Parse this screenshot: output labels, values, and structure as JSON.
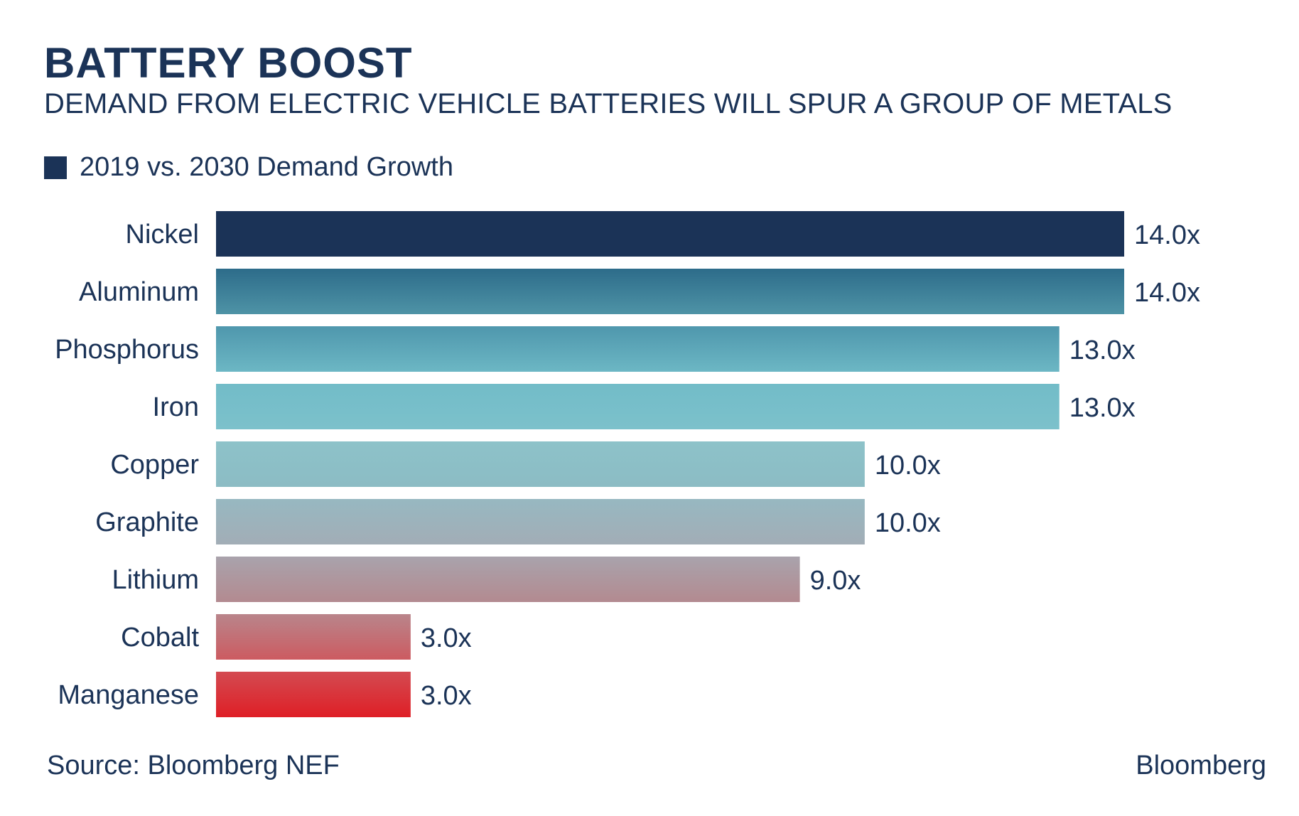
{
  "header": {
    "title": "BATTERY BOOST",
    "subtitle": "DEMAND FROM ELECTRIC VEHICLE BATTERIES WILL SPUR A GROUP OF METALS"
  },
  "legend": {
    "label": "2019 vs. 2030 Demand Growth",
    "color": "#1b3357"
  },
  "footer": {
    "source": "Source: Bloomberg NEF",
    "brand": "Bloomberg"
  },
  "chart_data": {
    "type": "bar",
    "orientation": "horizontal",
    "categories": [
      "Nickel",
      "Aluminum",
      "Phosphorus",
      "Iron",
      "Copper",
      "Graphite",
      "Lithium",
      "Cobalt",
      "Manganese"
    ],
    "series": [
      {
        "name": "2019 vs. 2030 Demand Growth",
        "values": [
          14.0,
          14.0,
          13.0,
          13.0,
          10.0,
          10.0,
          9.0,
          3.0,
          3.0
        ]
      }
    ],
    "data_labels": [
      "14.0x",
      "14.0x",
      "13.0x",
      "13.0x",
      "10.0x",
      "10.0x",
      "9.0x",
      "3.0x",
      "3.0x"
    ],
    "bar_colors": [
      [
        "#1b3357",
        "#1b3357"
      ],
      [
        "#2d6c8a",
        "#4e93a6"
      ],
      [
        "#4f97ad",
        "#6cb7c4"
      ],
      [
        "#72bcc8",
        "#7cc1cb"
      ],
      [
        "#8dc2c9",
        "#8cbcc4"
      ],
      [
        "#97b8c1",
        "#a2adb6"
      ],
      [
        "#a9a3ac",
        "#b38a90"
      ],
      [
        "#b9858b",
        "#cc5b61"
      ],
      [
        "#d34a51",
        "#df1f26"
      ]
    ],
    "xlim": [
      0,
      14.0
    ],
    "grid": false,
    "legend_position": "top-left"
  }
}
